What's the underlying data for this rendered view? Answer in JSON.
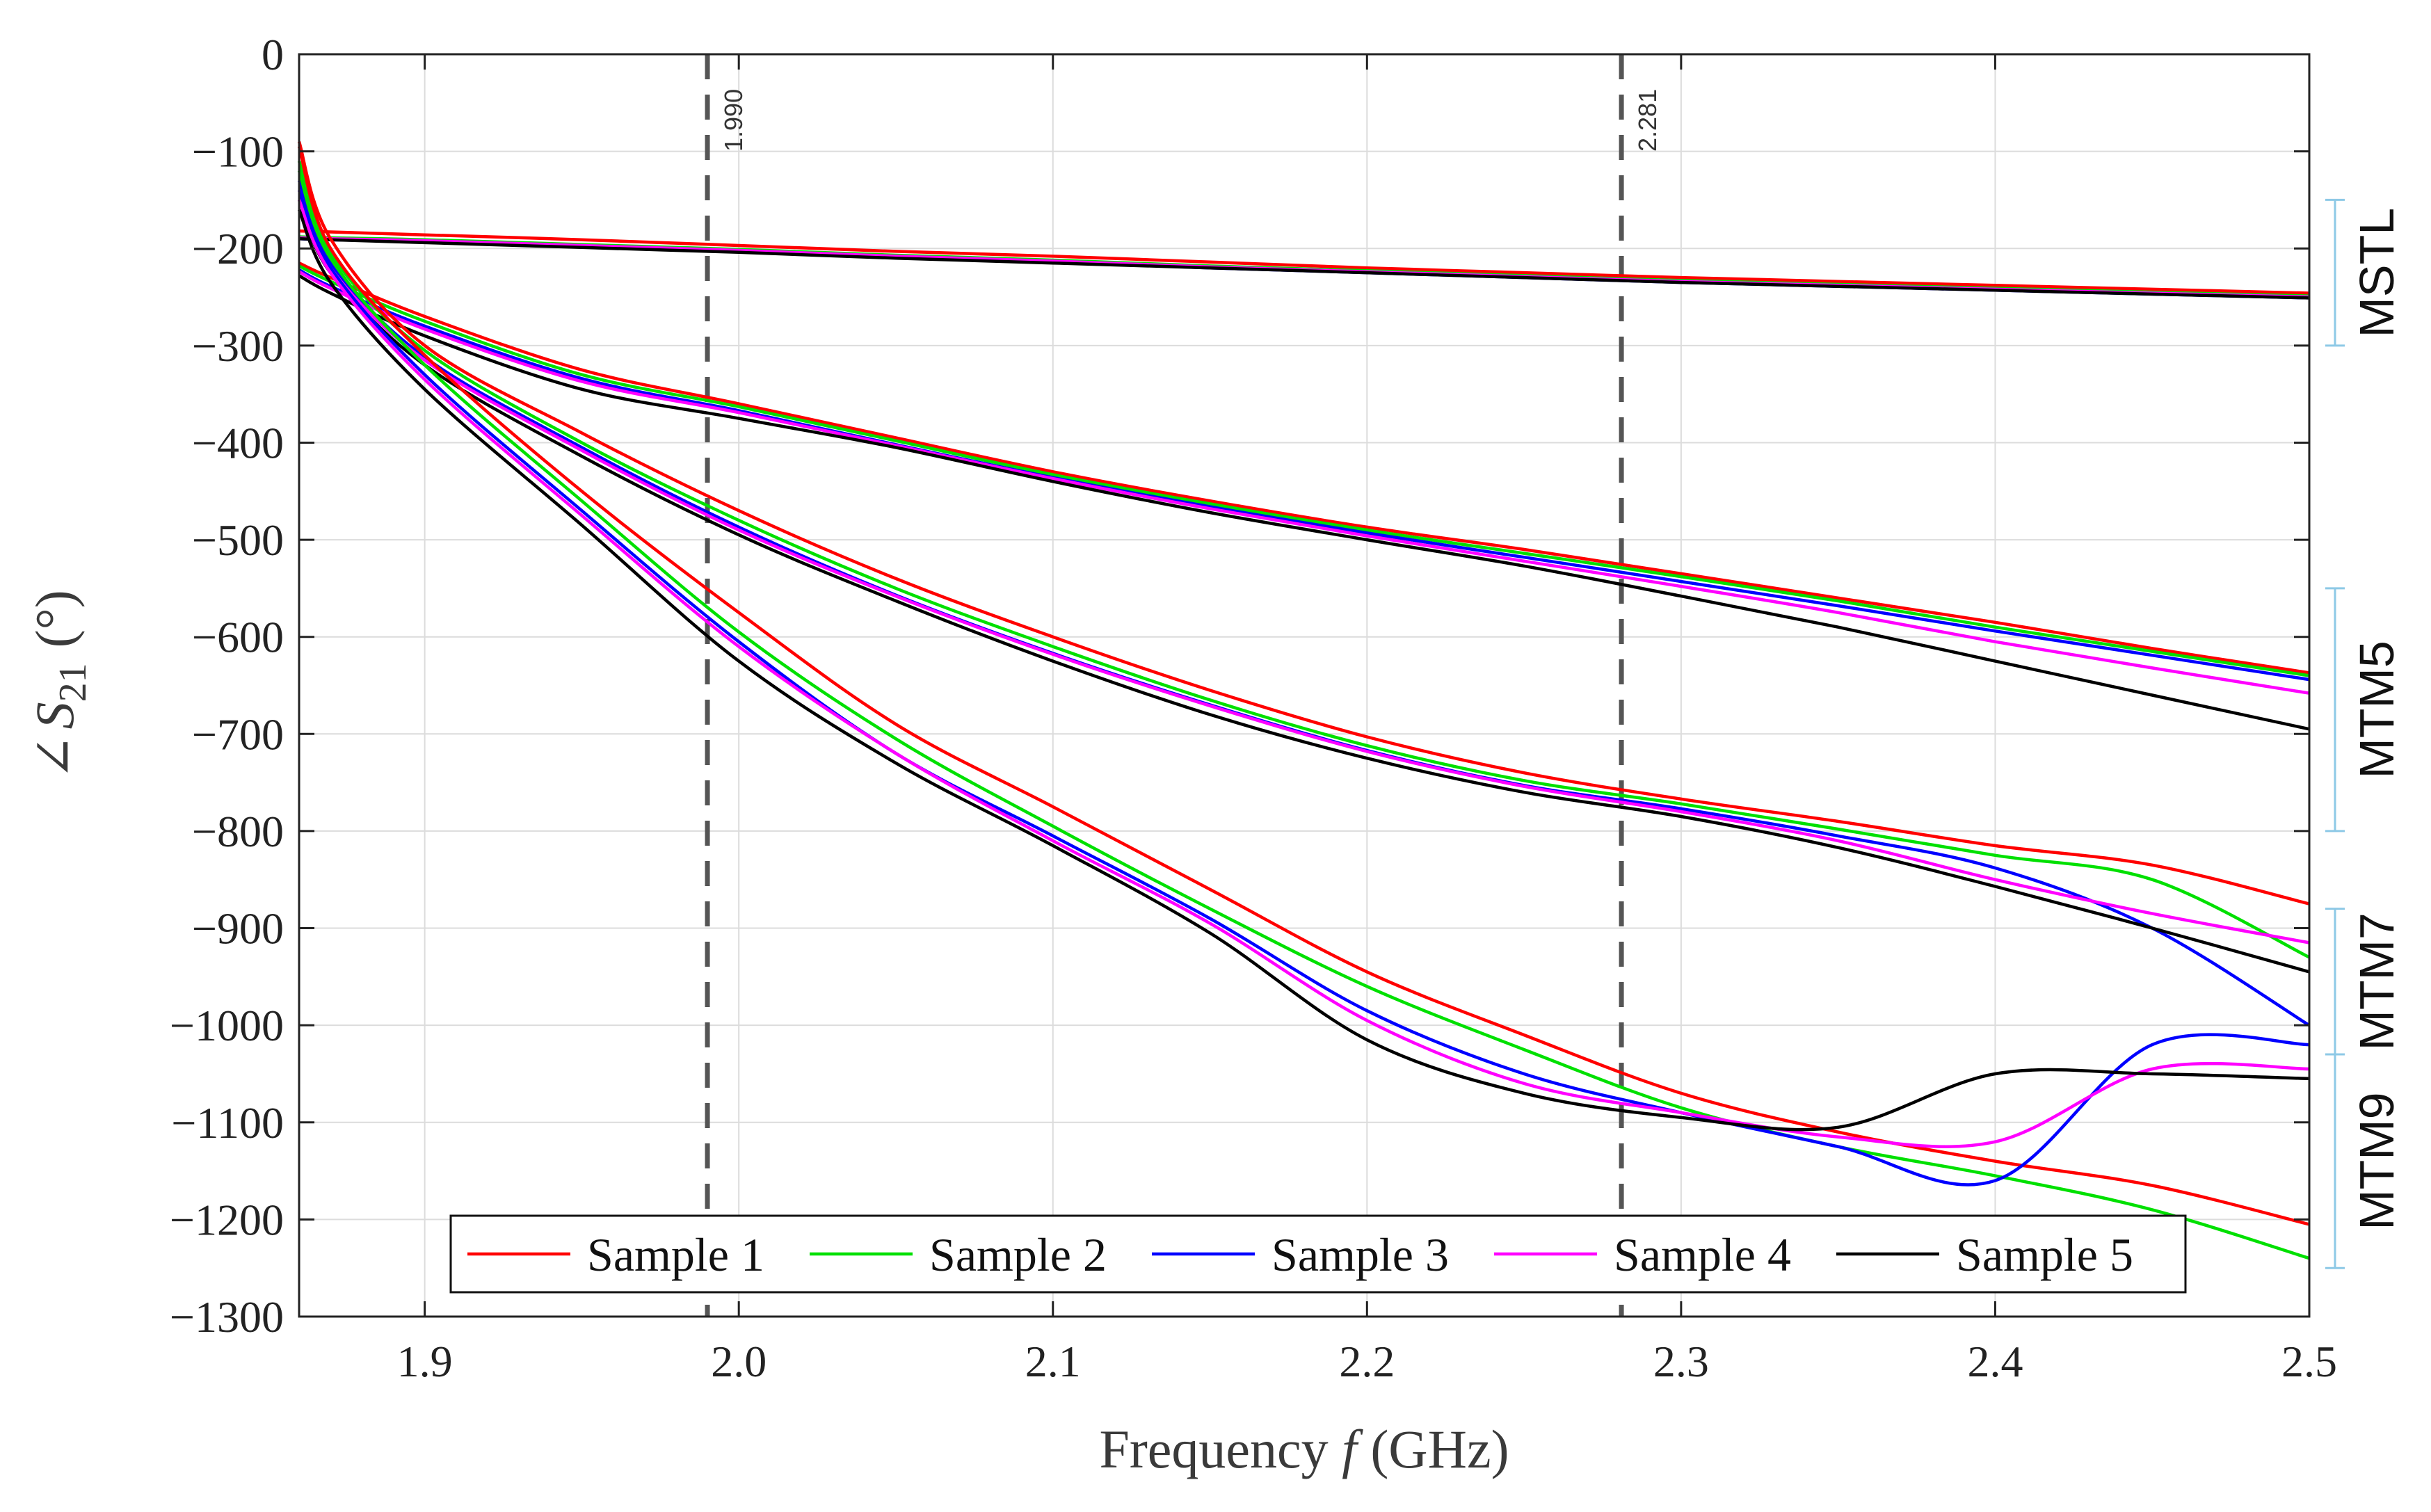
{
  "chart_data": {
    "type": "line",
    "title": "",
    "xlabel": "Frequency f (GHz)",
    "xlabel_parts": {
      "prefix": "Frequency ",
      "symbol": "f",
      "suffix": " (GHz)"
    },
    "ylabel": "∠S21 (°)",
    "ylabel_parts": {
      "angle": "∠",
      "symbol": "S",
      "sub": "21",
      "unit": "(°)"
    },
    "xlim": [
      1.86,
      2.5
    ],
    "ylim": [
      -1300,
      0
    ],
    "xticks": [
      1.9,
      2.0,
      2.1,
      2.2,
      2.3,
      2.4,
      2.5
    ],
    "xtick_labels": [
      "1.9",
      "2.0",
      "2.1",
      "2.2",
      "2.3",
      "2.4",
      "2.5"
    ],
    "yticks": [
      0,
      -100,
      -200,
      -300,
      -400,
      -500,
      -600,
      -700,
      -800,
      -900,
      -1000,
      -1100,
      -1200,
      -1300
    ],
    "ytick_labels": [
      "0",
      "−100",
      "−200",
      "−300",
      "−400",
      "−500",
      "−600",
      "−700",
      "−800",
      "−900",
      "−1000",
      "−1100",
      "−1200",
      "−1300"
    ],
    "grid": true,
    "legend_position": "bottom-center",
    "legend": [
      {
        "name": "Sample 1",
        "color": "#ff0000"
      },
      {
        "name": "Sample 2",
        "color": "#00e000"
      },
      {
        "name": "Sample 3",
        "color": "#0000ff"
      },
      {
        "name": "Sample 4",
        "color": "#ff00ff"
      },
      {
        "name": "Sample 5",
        "color": "#000000"
      }
    ],
    "vertical_lines": [
      {
        "x": 1.99,
        "label": "1.990"
      },
      {
        "x": 2.281,
        "label": "2.281"
      }
    ],
    "groups": [
      {
        "name": "MSTL",
        "range": [
          -150,
          -300
        ]
      },
      {
        "name": "MTM5",
        "range": [
          -550,
          -800
        ]
      },
      {
        "name": "MTM7",
        "range": [
          -880,
          -1030
        ]
      },
      {
        "name": "MTM9",
        "range": [
          -1030,
          -1250
        ]
      }
    ],
    "x": [
      1.86,
      1.87,
      1.9,
      1.95,
      2.0,
      2.05,
      2.1,
      2.15,
      2.2,
      2.25,
      2.3,
      2.35,
      2.4,
      2.45,
      2.5
    ],
    "series": [
      {
        "group": "MSTL",
        "name": "Sample 1",
        "color": "#ff0000",
        "values": [
          -182,
          -183,
          -186,
          -191,
          -197,
          -203,
          -208,
          -214,
          -220,
          -225,
          -230,
          -234,
          -238,
          -242,
          -246
        ]
      },
      {
        "group": "MSTL",
        "name": "Sample 2",
        "color": "#00e000",
        "values": [
          -188,
          -189,
          -191,
          -196,
          -201,
          -207,
          -212,
          -218,
          -223,
          -228,
          -233,
          -237,
          -241,
          -245,
          -249
        ]
      },
      {
        "group": "MSTL",
        "name": "Sample 3",
        "color": "#0000ff",
        "values": [
          -190,
          -191,
          -193,
          -198,
          -203,
          -209,
          -214,
          -220,
          -225,
          -230,
          -235,
          -239,
          -243,
          -247,
          -251
        ]
      },
      {
        "group": "MSTL",
        "name": "Sample 4",
        "color": "#ff00ff",
        "values": [
          -189,
          -190,
          -192,
          -197,
          -202,
          -208,
          -213,
          -219,
          -224,
          -229,
          -234,
          -238,
          -242,
          -246,
          -250
        ]
      },
      {
        "group": "MSTL",
        "name": "Sample 5",
        "color": "#000000",
        "values": [
          -190,
          -191,
          -194,
          -199,
          -204,
          -210,
          -215,
          -220,
          -225,
          -230,
          -235,
          -239,
          -243,
          -247,
          -251
        ]
      },
      {
        "group": "MTM5",
        "name": "Sample 1",
        "color": "#ff0000",
        "values": [
          -215,
          -230,
          -270,
          -325,
          -360,
          -395,
          -430,
          -460,
          -487,
          -510,
          -535,
          -560,
          -585,
          -612,
          -637
        ]
      },
      {
        "group": "MTM5",
        "name": "Sample 2",
        "color": "#00e000",
        "values": [
          -218,
          -234,
          -275,
          -330,
          -363,
          -398,
          -433,
          -463,
          -490,
          -514,
          -538,
          -563,
          -590,
          -615,
          -640
        ]
      },
      {
        "group": "MTM5",
        "name": "Sample 3",
        "color": "#0000ff",
        "values": [
          -222,
          -239,
          -280,
          -334,
          -367,
          -402,
          -436,
          -466,
          -493,
          -518,
          -543,
          -568,
          -594,
          -619,
          -644
        ]
      },
      {
        "group": "MTM5",
        "name": "Sample 4",
        "color": "#ff00ff",
        "values": [
          -224,
          -241,
          -283,
          -337,
          -369,
          -403,
          -437,
          -468,
          -496,
          -522,
          -548,
          -575,
          -605,
          -632,
          -658
        ]
      },
      {
        "group": "MTM5",
        "name": "Sample 5",
        "color": "#000000",
        "values": [
          -228,
          -246,
          -290,
          -345,
          -375,
          -405,
          -440,
          -472,
          -500,
          -527,
          -558,
          -590,
          -625,
          -660,
          -695
        ]
      },
      {
        "group": "MTM7",
        "name": "Sample 1",
        "color": "#ff0000",
        "values": [
          -90,
          -190,
          -300,
          -390,
          -470,
          -540,
          -600,
          -655,
          -703,
          -740,
          -767,
          -790,
          -815,
          -835,
          -875
        ]
      },
      {
        "group": "MTM7",
        "name": "Sample 2",
        "color": "#00e000",
        "values": [
          -110,
          -205,
          -305,
          -400,
          -480,
          -550,
          -610,
          -665,
          -712,
          -748,
          -772,
          -798,
          -825,
          -850,
          -930
        ]
      },
      {
        "group": "MTM7",
        "name": "Sample 3",
        "color": "#0000ff",
        "values": [
          -130,
          -215,
          -312,
          -405,
          -487,
          -557,
          -617,
          -670,
          -717,
          -753,
          -777,
          -805,
          -838,
          -900,
          -1000
        ]
      },
      {
        "group": "MTM7",
        "name": "Sample 4",
        "color": "#ff00ff",
        "values": [
          -140,
          -220,
          -315,
          -408,
          -490,
          -558,
          -618,
          -671,
          -718,
          -754,
          -780,
          -810,
          -850,
          -885,
          -915
        ]
      },
      {
        "group": "MTM7",
        "name": "Sample 5",
        "color": "#000000",
        "values": [
          -150,
          -225,
          -320,
          -414,
          -495,
          -563,
          -625,
          -680,
          -725,
          -760,
          -785,
          -817,
          -857,
          -900,
          -945
        ]
      },
      {
        "group": "MTM9",
        "name": "Sample 1",
        "color": "#ff0000",
        "values": [
          -95,
          -200,
          -310,
          -450,
          -575,
          -690,
          -775,
          -860,
          -945,
          -1010,
          -1070,
          -1110,
          -1140,
          -1165,
          -1205
        ]
      },
      {
        "group": "MTM9",
        "name": "Sample 2",
        "color": "#00e000",
        "values": [
          -120,
          -210,
          -320,
          -460,
          -595,
          -705,
          -795,
          -880,
          -960,
          -1025,
          -1085,
          -1125,
          -1155,
          -1190,
          -1240
        ]
      },
      {
        "group": "MTM9",
        "name": "Sample 3",
        "color": "#0000ff",
        "values": [
          -140,
          -220,
          -330,
          -470,
          -605,
          -720,
          -805,
          -890,
          -985,
          -1050,
          -1090,
          -1125,
          -1160,
          -1020,
          -1020
        ]
      },
      {
        "group": "MTM9",
        "name": "Sample 4",
        "color": "#ff00ff",
        "values": [
          -150,
          -225,
          -335,
          -475,
          -610,
          -720,
          -810,
          -895,
          -995,
          -1060,
          -1090,
          -1115,
          -1120,
          -1045,
          -1045
        ]
      },
      {
        "group": "MTM9",
        "name": "Sample 5",
        "color": "#000000",
        "values": [
          -160,
          -235,
          -345,
          -485,
          -625,
          -730,
          -815,
          -905,
          -1015,
          -1070,
          -1095,
          -1105,
          -1050,
          -1050,
          -1055
        ]
      }
    ]
  }
}
